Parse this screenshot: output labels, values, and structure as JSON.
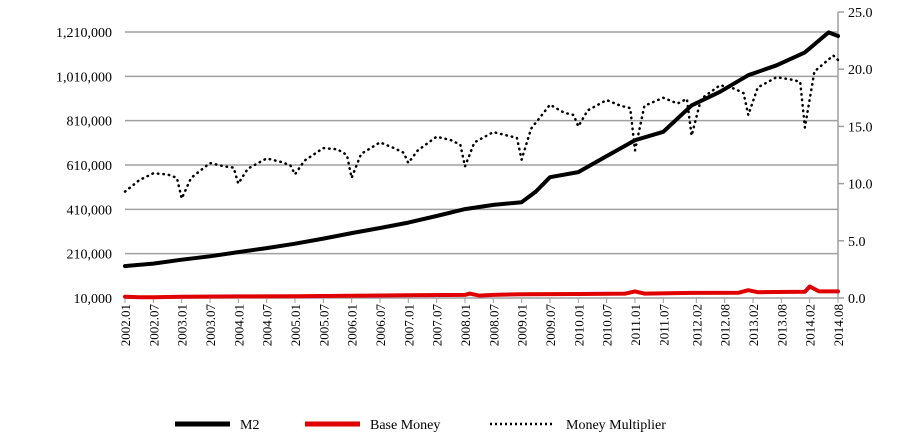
{
  "chart_data": {
    "type": "line",
    "title": "",
    "x_unit": "month index from 2002.01",
    "x_tick_labels": [
      "2002.01",
      "2002.07",
      "2003.01",
      "2003.07",
      "2004.01",
      "2004.07",
      "2005.01",
      "2005.07",
      "2006.01",
      "2006.07",
      "2007.01",
      "2007.07",
      "2008.01",
      "2008.07",
      "2009.01",
      "2009.07",
      "2010.01",
      "2010.07",
      "2011.01",
      "2011.07",
      "2012.02",
      "2012.08",
      "2013.02",
      "2013.08",
      "2014.02",
      "2014.08"
    ],
    "x_tick_months": [
      0,
      6,
      12,
      18,
      24,
      30,
      36,
      42,
      48,
      54,
      60,
      66,
      72,
      78,
      84,
      90,
      96,
      102,
      108,
      114,
      121,
      127,
      133,
      139,
      145,
      151
    ],
    "xlim": [
      0,
      151
    ],
    "left_axis": {
      "ylim": [
        10000,
        1210000
      ],
      "ticks": [
        "10,000",
        "210,000",
        "410,000",
        "610,000",
        "810,000",
        "1,010,000",
        "1,210,000"
      ],
      "tick_values": [
        10000,
        210000,
        410000,
        610000,
        810000,
        1010000,
        1210000
      ]
    },
    "right_axis": {
      "ylim": [
        0,
        25
      ],
      "ticks": [
        "0.0",
        "5.0",
        "10.0",
        "15.0",
        "20.0",
        "25.0"
      ],
      "tick_values": [
        0,
        5,
        10,
        15,
        20,
        25
      ]
    },
    "grid": true,
    "legend_position": "bottom",
    "series": [
      {
        "name": "M2",
        "axis": "left",
        "color": "#000000",
        "style": "solid-thick",
        "x": [
          0,
          6,
          12,
          18,
          24,
          30,
          36,
          42,
          48,
          54,
          60,
          66,
          72,
          78,
          84,
          87,
          90,
          96,
          102,
          108,
          114,
          120,
          126,
          132,
          138,
          144,
          149,
          151
        ],
        "y": [
          154000,
          165000,
          183000,
          198000,
          217000,
          235000,
          255000,
          278000,
          303000,
          326000,
          350000,
          380000,
          411000,
          430000,
          442000,
          490000,
          555000,
          578000,
          650000,
          722000,
          760000,
          879000,
          940000,
          1015000,
          1060000,
          1118000,
          1208000,
          1192000
        ]
      },
      {
        "name": "Base Money",
        "axis": "left",
        "color": "#e00000",
        "style": "solid-thick",
        "x": [
          0,
          3,
          6,
          12,
          24,
          36,
          48,
          60,
          72,
          73,
          75,
          78,
          84,
          96,
          106,
          108,
          110,
          120,
          130,
          132,
          134,
          144,
          145,
          147,
          151
        ],
        "y": [
          16000,
          13000,
          13000,
          16000,
          17000,
          18000,
          20000,
          22000,
          24000,
          30000,
          21000,
          24000,
          27000,
          28000,
          30000,
          40000,
          30000,
          33000,
          34000,
          45000,
          36000,
          38000,
          62000,
          40000,
          40000
        ]
      },
      {
        "name": "Money Multiplier",
        "axis": "right",
        "color": "#000000",
        "style": "dotted",
        "x": [
          0,
          3,
          6,
          9,
          11,
          12,
          14,
          18,
          21,
          23,
          24,
          26,
          30,
          33,
          35,
          36,
          38,
          42,
          45,
          47,
          48,
          50,
          54,
          57,
          59,
          60,
          62,
          66,
          69,
          71,
          72,
          74,
          78,
          81,
          83,
          84,
          86,
          90,
          93,
          95,
          96,
          98,
          102,
          105,
          107,
          108,
          110,
          114,
          117,
          119,
          120,
          122,
          126,
          129,
          131,
          132,
          134,
          138,
          141,
          143,
          144,
          146,
          150,
          151
        ],
        "y": [
          9.3,
          10.3,
          10.9,
          10.8,
          10.5,
          8.7,
          10.5,
          11.8,
          11.5,
          11.4,
          10.0,
          11.3,
          12.2,
          11.9,
          11.6,
          10.8,
          12.0,
          13.1,
          13.0,
          12.5,
          10.5,
          12.6,
          13.6,
          13.1,
          12.7,
          11.8,
          12.9,
          14.1,
          13.8,
          13.4,
          11.5,
          13.6,
          14.5,
          14.2,
          14.0,
          12.1,
          14.8,
          16.9,
          16.2,
          16.0,
          15.0,
          16.4,
          17.3,
          16.8,
          16.6,
          12.9,
          16.8,
          17.5,
          17.0,
          17.4,
          14.2,
          17.4,
          18.6,
          18.3,
          17.9,
          16.0,
          18.4,
          19.3,
          19.1,
          18.9,
          14.9,
          19.8,
          21.2,
          20.8
        ]
      }
    ]
  },
  "legend": {
    "m2": "M2",
    "base_money": "Base Money",
    "multiplier": "Money Multiplier"
  }
}
